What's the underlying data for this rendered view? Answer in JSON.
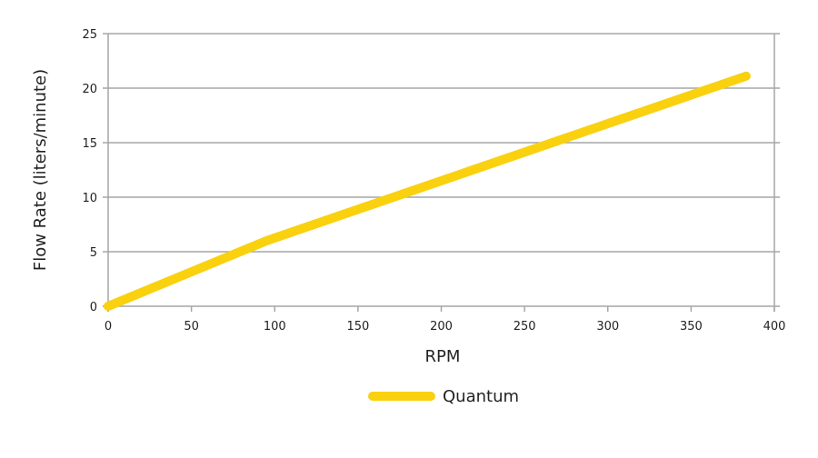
{
  "chart_data": {
    "type": "line",
    "title": "",
    "xlabel": "RPM",
    "ylabel": "Flow Rate (liters/minute)",
    "xlim": [
      0,
      400
    ],
    "ylim": [
      0,
      25
    ],
    "x_ticks": [
      "0",
      "50",
      "100",
      "150",
      "200",
      "250",
      "300",
      "350",
      "400"
    ],
    "y_ticks": [
      "0",
      "5",
      "10",
      "15",
      "20",
      "25"
    ],
    "grid": "horizontal",
    "legend_position": "bottom-center",
    "series": [
      {
        "name": "Quantum",
        "color": "#F9D10F",
        "points": [
          {
            "x": 0,
            "y": 0
          },
          {
            "x": 95,
            "y": 6
          },
          {
            "x": 383,
            "y": 21.1
          }
        ]
      }
    ]
  }
}
